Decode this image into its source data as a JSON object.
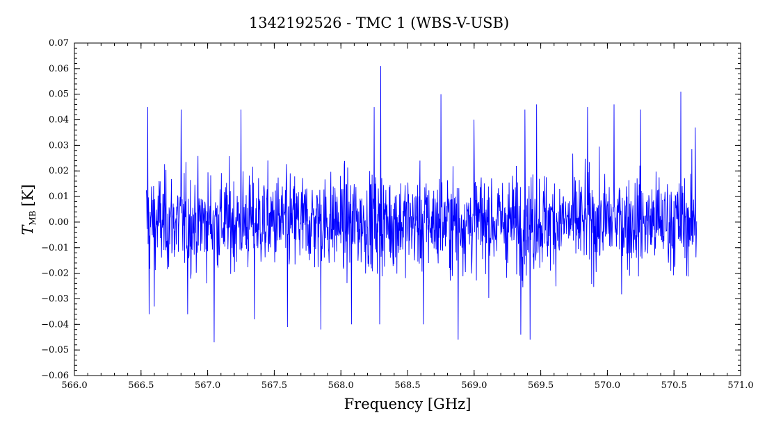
{
  "chart_data": {
    "type": "line",
    "title": "1342192526 - TMC 1 (WBS-V-USB)",
    "xlabel": "Frequency [GHz]",
    "ylabel_main": "T",
    "ylabel_sub": "MB",
    "ylabel_unit": "[K]",
    "xlim": [
      566.0,
      571.0
    ],
    "ylim": [
      -0.06,
      0.07
    ],
    "x_ticks": [
      566.0,
      566.5,
      567.0,
      567.5,
      568.0,
      568.5,
      569.0,
      569.5,
      570.0,
      570.5,
      571.0
    ],
    "x_tick_labels": [
      "566.0",
      "566.5",
      "567.0",
      "567.5",
      "568.0",
      "568.5",
      "569.0",
      "569.5",
      "570.0",
      "570.5",
      "571.0"
    ],
    "y_ticks": [
      -0.06,
      -0.05,
      -0.04,
      -0.03,
      -0.02,
      -0.01,
      0.0,
      0.01,
      0.02,
      0.03,
      0.04,
      0.05,
      0.06,
      0.07
    ],
    "y_tick_labels": [
      "−0.06",
      "−0.05",
      "−0.04",
      "−0.03",
      "−0.02",
      "−0.01",
      "0.00",
      "0.01",
      "0.02",
      "0.03",
      "0.04",
      "0.05",
      "0.06",
      "0.07"
    ],
    "grid": false,
    "series": [
      {
        "color": "#0000ff",
        "x_start": 566.54,
        "x_end": 570.67,
        "noise_rms": 0.011,
        "spikes": [
          {
            "x": 566.55,
            "y": 0.045
          },
          {
            "x": 566.56,
            "y": -0.036
          },
          {
            "x": 566.6,
            "y": -0.033
          },
          {
            "x": 566.8,
            "y": 0.044
          },
          {
            "x": 566.85,
            "y": -0.036
          },
          {
            "x": 567.05,
            "y": -0.047
          },
          {
            "x": 567.25,
            "y": 0.044
          },
          {
            "x": 567.35,
            "y": -0.038
          },
          {
            "x": 567.6,
            "y": -0.041
          },
          {
            "x": 567.85,
            "y": -0.042
          },
          {
            "x": 568.08,
            "y": -0.04
          },
          {
            "x": 568.25,
            "y": 0.045
          },
          {
            "x": 568.3,
            "y": 0.061
          },
          {
            "x": 568.29,
            "y": -0.04
          },
          {
            "x": 568.62,
            "y": -0.04
          },
          {
            "x": 568.75,
            "y": 0.05
          },
          {
            "x": 568.88,
            "y": -0.046
          },
          {
            "x": 569.0,
            "y": 0.04
          },
          {
            "x": 569.35,
            "y": -0.044
          },
          {
            "x": 569.38,
            "y": 0.044
          },
          {
            "x": 569.42,
            "y": -0.046
          },
          {
            "x": 569.47,
            "y": 0.046
          },
          {
            "x": 569.85,
            "y": 0.045
          },
          {
            "x": 570.05,
            "y": 0.046
          },
          {
            "x": 570.25,
            "y": 0.044
          },
          {
            "x": 570.55,
            "y": 0.051
          },
          {
            "x": 570.66,
            "y": 0.037
          }
        ]
      }
    ]
  }
}
